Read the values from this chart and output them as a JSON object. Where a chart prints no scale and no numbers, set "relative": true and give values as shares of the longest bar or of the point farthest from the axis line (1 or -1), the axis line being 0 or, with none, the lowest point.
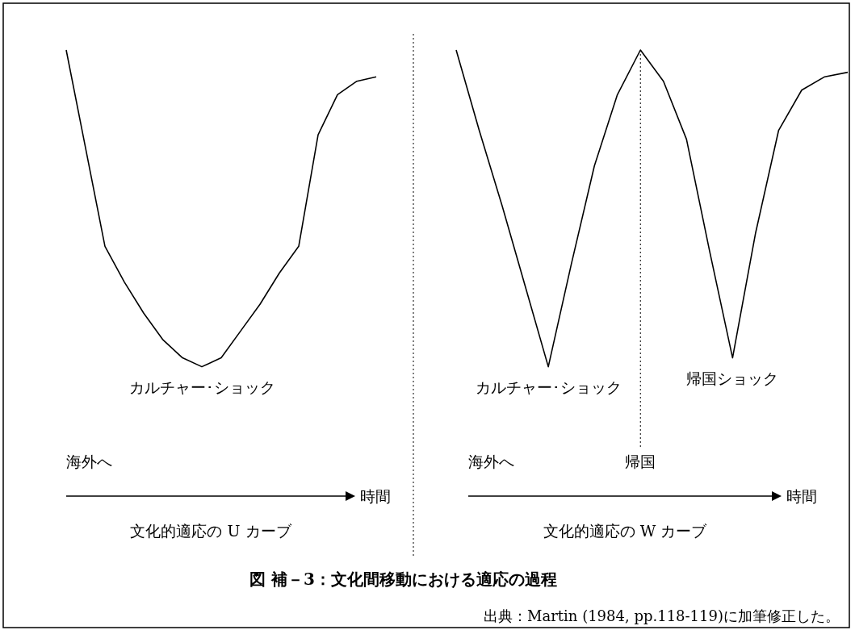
{
  "chart_data": [
    {
      "type": "line",
      "relative": true,
      "xlabel": "文化的適応の U カーブ",
      "categories": [
        null,
        null,
        null,
        null,
        null,
        null,
        null,
        null,
        null,
        null,
        null,
        null,
        null,
        null,
        null,
        null,
        null
      ],
      "marker": "none",
      "line_style": "solid",
      "series": [
        {
          "color": "#000000",
          "values": [
            1.0,
            0.78,
            0.56,
            0.48,
            0.41,
            0.35,
            0.31,
            0.29,
            0.31,
            0.37,
            0.43,
            0.5,
            0.56,
            0.81,
            0.9,
            0.93,
            0.94
          ]
        }
      ],
      "annotations": [
        "カルチャー･ショック",
        "海外へ",
        "時間"
      ]
    },
    {
      "type": "line",
      "relative": true,
      "xlabel": "文化的適応の W カーブ",
      "categories": [
        null,
        null,
        null,
        null,
        null,
        null,
        null,
        null,
        null,
        null,
        null,
        null,
        null,
        null,
        null,
        null,
        null,
        null
      ],
      "marker": "none",
      "line_style": "solid",
      "series": [
        {
          "color": "#000000",
          "values": [
            1.0,
            0.82,
            0.65,
            0.47,
            0.29,
            0.52,
            0.74,
            0.9,
            1.0,
            0.93,
            0.8,
            0.55,
            0.31,
            0.59,
            0.82,
            0.91,
            0.94,
            0.95
          ]
        }
      ],
      "annotations": [
        "カルチャー･ショック",
        "帰国ショック",
        "海外へ",
        "帰国",
        "時間",
        "図 補－3：文化間移動における適応の過程",
        "出典：Martin (1984, pp.118-119)に加筆修正した。"
      ]
    }
  ]
}
